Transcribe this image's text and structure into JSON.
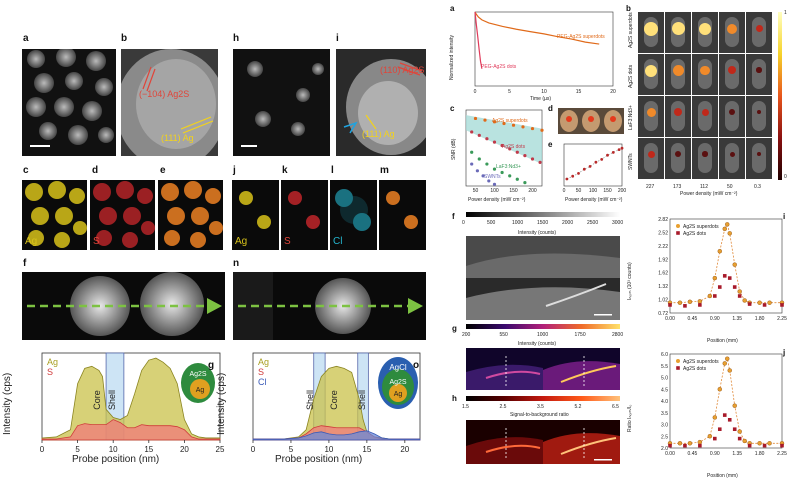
{
  "left_figure": {
    "panel_letters": [
      "a",
      "b",
      "c",
      "d",
      "e",
      "f",
      "g",
      "h",
      "i",
      "j",
      "k",
      "l",
      "m",
      "n",
      "o"
    ],
    "b_annotations": [
      "(−104) Ag2S",
      "(111) Ag"
    ],
    "i_annotations": [
      "(110) Ag2S",
      "(111) Ag"
    ],
    "element_maps": {
      "c": "Ag",
      "d": "S",
      "e": "",
      "j": "Ag",
      "k": "S",
      "l": "Cl",
      "m": ""
    },
    "g_legend": [
      "Ag",
      "S"
    ],
    "o_legend": [
      "Ag",
      "S",
      "Cl"
    ],
    "g_regions": [
      "Core",
      "Shell"
    ],
    "o_regions": [
      "Shell",
      "Core",
      "Shell"
    ],
    "g_sphere_labels": [
      "Ag2S",
      "Ag"
    ],
    "o_sphere_labels": [
      "AgCl",
      "Ag2S",
      "Ag"
    ],
    "y_axis_label": "Intensity (cps)",
    "x_axis_label": "Probe position (nm)",
    "g_x_ticks": [
      "0",
      "5",
      "10",
      "15",
      "20",
      "25"
    ],
    "o_x_ticks": [
      "0",
      "5",
      "10",
      "15",
      "20"
    ]
  },
  "right_figure": {
    "panel_letters": [
      "a",
      "b",
      "c",
      "d",
      "e",
      "f",
      "g",
      "h",
      "i",
      "j"
    ],
    "a_legend": [
      "PEG-Ag2S superdots",
      "PEG-Ag2S dots"
    ],
    "a_xlabel": "Time (µs)",
    "a_ylabel": "Normalized intensity",
    "a_xticks": [
      "0",
      "5",
      "10",
      "15",
      "20"
    ],
    "c_labels": [
      "Ag2S superdots",
      "Ag2S dots",
      "LaF3:Nd3+",
      "SWNTs"
    ],
    "c_xlabel": "Power density (mW cm⁻²)",
    "c_ylabel": "SNR (dB)",
    "c_xticks": [
      "50",
      "100",
      "150",
      "200"
    ],
    "e_xticks": [
      "0",
      "50",
      "100",
      "150",
      "200"
    ],
    "e_xlabel": "Power density (mW cm⁻²)",
    "b_row_labels": [
      "Ag2S superdots",
      "Ag2S dots",
      "LaF3:Nd3+",
      "SWNTs"
    ],
    "b_col_values": [
      "227",
      "173",
      "112",
      "50",
      "0.3"
    ],
    "b_xlabel": "Power density (mW cm⁻²)",
    "b_colorbar": [
      "1",
      "0"
    ],
    "f_colorbar": [
      "0",
      "500",
      "1000",
      "1500",
      "2000",
      "2500",
      "3000"
    ],
    "f_bar_label": "Intensity (counts)",
    "g_colorbar": [
      "200",
      "550",
      "1000",
      "1750",
      "2800"
    ],
    "g_bar_label": "Intensity (counts)",
    "h_colorbar": [
      "1.5",
      "2.5",
      "3.5",
      "5.2",
      "6.5"
    ],
    "h_bar_label": "Signal-to-background ratio",
    "i_legend": [
      "Ag2S superdots",
      "Ag2S dots"
    ],
    "i_ylabel": "Iₙₒᵣₘ (10³ counts)",
    "i_yticks": [
      "2.82",
      "2.52",
      "2.22",
      "1.92",
      "1.62",
      "1.32",
      "1.02",
      "0.72"
    ],
    "j_legend": [
      "Ag2S superdots",
      "Ag2S dots"
    ],
    "j_ylabel": "Ratio Iₙₒᵣₘ/I₀",
    "j_yticks": [
      "6.0",
      "5.5",
      "5.0",
      "4.5",
      "4.0",
      "3.5",
      "3.0",
      "2.5",
      "2.0"
    ],
    "ij_xticks": [
      "0.00",
      "0.45",
      "0.90",
      "1.35",
      "1.80",
      "2.25"
    ],
    "ij_xlabel": "Position (mm)"
  },
  "chart_data": [
    {
      "type": "area",
      "title": "g",
      "xlabel": "Probe position (nm)",
      "ylabel": "Intensity (cps)",
      "xlim": [
        0,
        25
      ],
      "series": [
        {
          "name": "Ag",
          "x": [
            0,
            2,
            4,
            5,
            6,
            7,
            8,
            8.5,
            9,
            10,
            11,
            12,
            13,
            14,
            15,
            16,
            17,
            18,
            19,
            20,
            21,
            22,
            23,
            25
          ],
          "values": [
            2,
            3,
            10,
            55,
            70,
            72,
            68,
            62,
            30,
            22,
            20,
            24,
            45,
            68,
            78,
            80,
            76,
            70,
            55,
            20,
            6,
            3,
            2,
            2
          ]
        },
        {
          "name": "S",
          "x": [
            0,
            2,
            4,
            5,
            6,
            7,
            8,
            9,
            10,
            11,
            12,
            13,
            14,
            15,
            16,
            17,
            18,
            19,
            20,
            21,
            22,
            23,
            25
          ],
          "values": [
            1,
            1,
            3,
            14,
            16,
            15,
            15,
            15,
            20,
            17,
            12,
            12,
            15,
            14,
            14,
            14,
            14,
            13,
            10,
            3,
            1,
            1,
            1
          ]
        }
      ]
    },
    {
      "type": "area",
      "title": "o",
      "xlabel": "Probe position (nm)",
      "ylabel": "Intensity (cps)",
      "xlim": [
        0,
        22
      ],
      "series": [
        {
          "name": "Ag",
          "x": [
            0,
            4,
            6,
            7,
            8,
            9,
            10,
            11,
            12,
            13,
            14,
            14.5,
            15,
            16,
            17,
            18,
            20,
            22
          ],
          "values": [
            1,
            1,
            3,
            10,
            40,
            62,
            70,
            72,
            70,
            66,
            40,
            20,
            8,
            3,
            2,
            1,
            1,
            1
          ]
        },
        {
          "name": "S",
          "x": [
            0,
            4,
            6,
            7,
            8,
            9,
            10,
            11,
            12,
            13,
            14,
            15,
            16,
            17,
            18,
            20,
            22
          ],
          "values": [
            1,
            1,
            2,
            6,
            12,
            14,
            13,
            12,
            12,
            12,
            12,
            8,
            3,
            1,
            1,
            1,
            1
          ]
        },
        {
          "name": "Cl",
          "x": [
            0,
            4,
            6,
            7,
            8,
            9,
            10,
            11,
            12,
            13,
            14,
            15,
            16,
            17,
            18,
            20,
            22
          ],
          "values": [
            1,
            1,
            2,
            4,
            7,
            8,
            6,
            5,
            5,
            6,
            8,
            9,
            6,
            2,
            1,
            1,
            1
          ]
        }
      ]
    },
    {
      "type": "line",
      "title": "a",
      "xlabel": "Time (µs)",
      "ylabel": "Normalized intensity",
      "xlim": [
        0,
        20
      ],
      "series": [
        {
          "name": "PEG-Ag2S superdots",
          "x": [
            0,
            0.2,
            0.5,
            1,
            2,
            4,
            6,
            8,
            10,
            12,
            14,
            16,
            18
          ],
          "values": [
            1,
            0.8,
            0.62,
            0.48,
            0.36,
            0.26,
            0.2,
            0.16,
            0.13,
            0.1,
            0.08,
            0.06,
            0.05
          ]
        },
        {
          "name": "PEG-Ag2S dots",
          "x": [
            0,
            0.2,
            0.4,
            0.6,
            0.8,
            1
          ],
          "values": [
            1,
            0.3,
            0.1,
            0.03,
            0.01,
            0.005
          ]
        }
      ]
    },
    {
      "type": "scatter",
      "title": "c",
      "xlabel": "Power density (mW cm⁻²)",
      "ylabel": "SNR (dB)",
      "xlim": [
        25,
        225
      ],
      "ylim": [
        0,
        45
      ],
      "series": [
        {
          "name": "Ag2S superdots",
          "x": [
            50,
            75,
            100,
            125,
            150,
            175,
            200,
            225
          ],
          "values": [
            40,
            39,
            38,
            37,
            36,
            35,
            34,
            33
          ]
        },
        {
          "name": "Ag2S dots",
          "x": [
            40,
            60,
            80,
            100,
            120,
            140,
            160,
            180,
            200,
            220
          ],
          "values": [
            32,
            30,
            28,
            26,
            24,
            22,
            20,
            18,
            16,
            14
          ]
        },
        {
          "name": "LaF3:Nd3+",
          "x": [
            40,
            60,
            80,
            100,
            120,
            140,
            160,
            180
          ],
          "values": [
            20,
            16,
            13,
            10,
            8,
            6,
            4,
            2
          ]
        },
        {
          "name": "SWNTs",
          "x": [
            40,
            55,
            70,
            85,
            100
          ],
          "values": [
            13,
            9,
            6,
            3,
            1
          ]
        }
      ]
    },
    {
      "type": "scatter",
      "title": "e",
      "xlabel": "Power density (mW cm⁻²)",
      "ylabel": "SNR (dB)",
      "xlim": [
        0,
        200
      ],
      "series": [
        {
          "name": "SNR",
          "x": [
            10,
            30,
            50,
            70,
            90,
            110,
            130,
            150,
            170,
            190,
            200
          ],
          "values": [
            10,
            12,
            14,
            17,
            19,
            22,
            24,
            27,
            29,
            31,
            32
          ]
        }
      ]
    },
    {
      "type": "scatter",
      "title": "i",
      "xlabel": "Position (mm)",
      "ylabel": "Iₙₒᵣₘ (10³ counts)",
      "xlim": [
        0,
        2.25
      ],
      "ylim": [
        0.72,
        2.82
      ],
      "series": [
        {
          "name": "Ag2S superdots",
          "x": [
            0,
            0.2,
            0.4,
            0.6,
            0.8,
            0.9,
            1.0,
            1.1,
            1.15,
            1.2,
            1.3,
            1.4,
            1.5,
            1.6,
            1.8,
            2.0,
            2.25
          ],
          "values": [
            0.95,
            0.95,
            0.97,
            0.98,
            1.1,
            1.5,
            2.1,
            2.6,
            2.7,
            2.5,
            1.8,
            1.2,
            1.0,
            0.95,
            0.95,
            0.95,
            0.95
          ]
        },
        {
          "name": "Ag2S dots",
          "x": [
            0,
            0.3,
            0.6,
            0.9,
            1.0,
            1.1,
            1.2,
            1.3,
            1.4,
            1.6,
            1.9,
            2.25
          ],
          "values": [
            0.9,
            0.88,
            0.9,
            1.1,
            1.3,
            1.55,
            1.5,
            1.3,
            1.1,
            0.92,
            0.9,
            0.9
          ]
        }
      ]
    },
    {
      "type": "scatter",
      "title": "j",
      "xlabel": "Position (mm)",
      "ylabel": "Ratio Iₙₒᵣₘ/I₀",
      "xlim": [
        0,
        2.25
      ],
      "ylim": [
        2.0,
        6.0
      ],
      "series": [
        {
          "name": "Ag2S superdots",
          "x": [
            0,
            0.2,
            0.4,
            0.6,
            0.8,
            0.9,
            1.0,
            1.1,
            1.15,
            1.2,
            1.3,
            1.4,
            1.5,
            1.6,
            1.8,
            2.0,
            2.25
          ],
          "values": [
            2.2,
            2.2,
            2.2,
            2.25,
            2.5,
            3.3,
            4.5,
            5.6,
            5.8,
            5.3,
            3.8,
            2.7,
            2.3,
            2.2,
            2.2,
            2.2,
            2.2
          ]
        },
        {
          "name": "Ag2S dots",
          "x": [
            0,
            0.3,
            0.6,
            0.9,
            1.0,
            1.1,
            1.2,
            1.3,
            1.4,
            1.6,
            1.9,
            2.25
          ],
          "values": [
            2.1,
            2.1,
            2.1,
            2.4,
            2.8,
            3.4,
            3.2,
            2.8,
            2.4,
            2.1,
            2.1,
            2.1
          ]
        }
      ]
    }
  ]
}
